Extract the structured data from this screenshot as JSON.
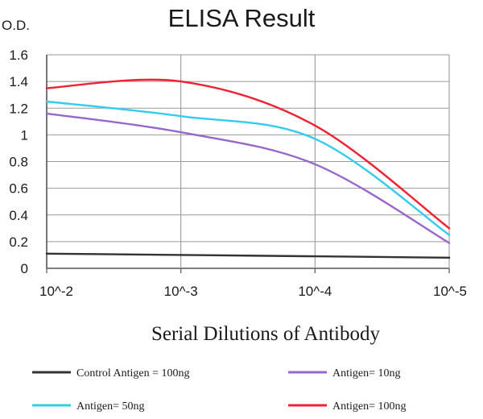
{
  "chart_data": {
    "type": "line",
    "title": "ELISA Result",
    "ylabel": "O.D.",
    "xlabel": "Serial Dilutions of Antibody",
    "x_ticks": [
      "10^-2",
      "10^-3",
      "10^-4",
      "10^-5"
    ],
    "y_ticks": [
      "0",
      "0.2",
      "0.4",
      "0.6",
      "0.8",
      "1",
      "1.2",
      "1.4",
      "1.6"
    ],
    "ylim": [
      0,
      1.6
    ],
    "x_scale": "log",
    "grid": true,
    "legend_position": "bottom",
    "series": [
      {
        "name": "Control Antigen = 100ng",
        "color": "#333333",
        "x": [
          "10^-2",
          "10^-3",
          "10^-4",
          "10^-5"
        ],
        "values": [
          0.11,
          0.1,
          0.09,
          0.08
        ]
      },
      {
        "name": "Antigen= 10ng",
        "color": "#9966cc",
        "x": [
          "10^-2",
          "10^-3",
          "10^-4",
          "10^-5"
        ],
        "values": [
          1.16,
          1.02,
          0.78,
          0.19
        ]
      },
      {
        "name": "Antigen= 50ng",
        "color": "#33ccee",
        "x": [
          "10^-2",
          "10^-3",
          "10^-4",
          "10^-5"
        ],
        "values": [
          1.25,
          1.14,
          0.97,
          0.25
        ]
      },
      {
        "name": "Antigen= 100ng",
        "color": "#ee2233",
        "x": [
          "10^-2",
          "10^-3",
          "10^-4",
          "10^-5"
        ],
        "values": [
          1.35,
          1.4,
          1.07,
          0.3
        ]
      }
    ]
  }
}
